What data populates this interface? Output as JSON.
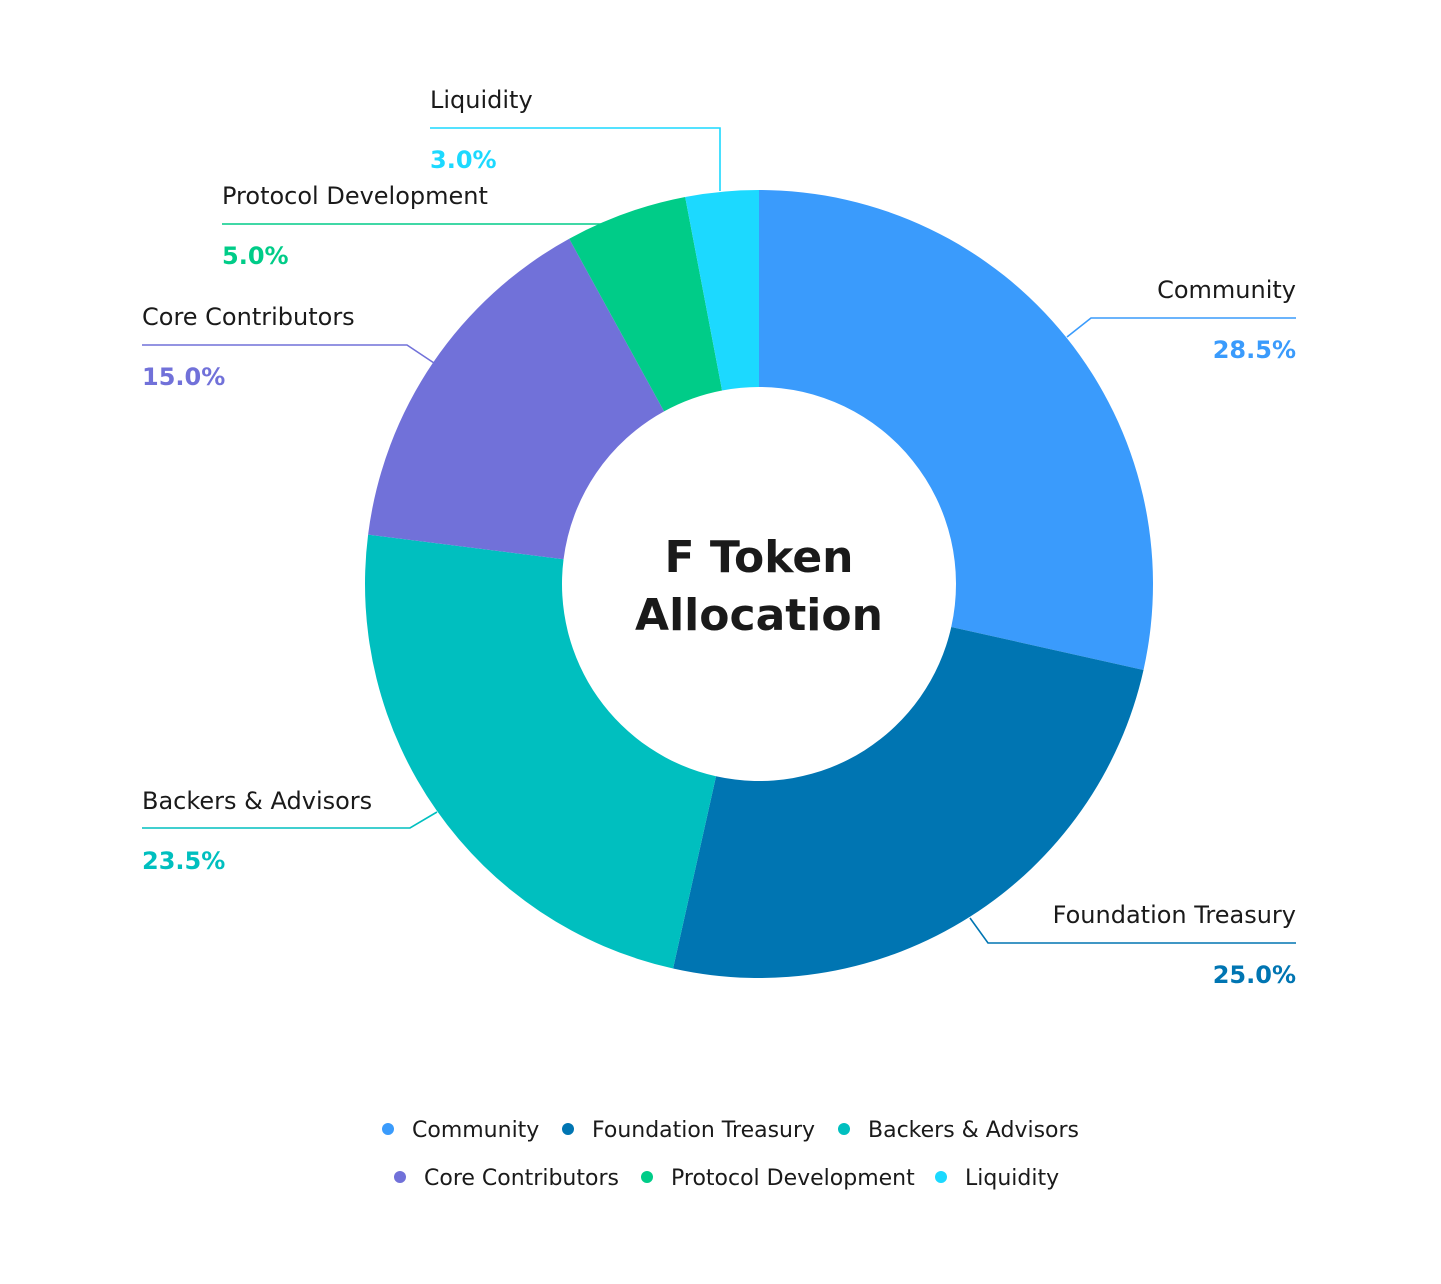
{
  "chart_data": {
    "type": "pie",
    "title": "F Token Allocation",
    "title_lines": [
      "F Token",
      "Allocation"
    ],
    "donut": true,
    "legend_position": "bottom",
    "categories": [
      "Community",
      "Foundation Treasury",
      "Backers & Advisors",
      "Core Contributors",
      "Protocol Development",
      "Liquidity"
    ],
    "values": [
      28.5,
      25.0,
      23.5,
      15.0,
      5.0,
      3.0
    ],
    "value_labels": [
      "28.5%",
      "25.0%",
      "23.5%",
      "15.0%",
      "5.0%",
      "3.0%"
    ],
    "colors": [
      "#3A9BFC",
      "#0075B2",
      "#00BFBF",
      "#7171D9",
      "#00CC88",
      "#1CD9FF"
    ]
  }
}
